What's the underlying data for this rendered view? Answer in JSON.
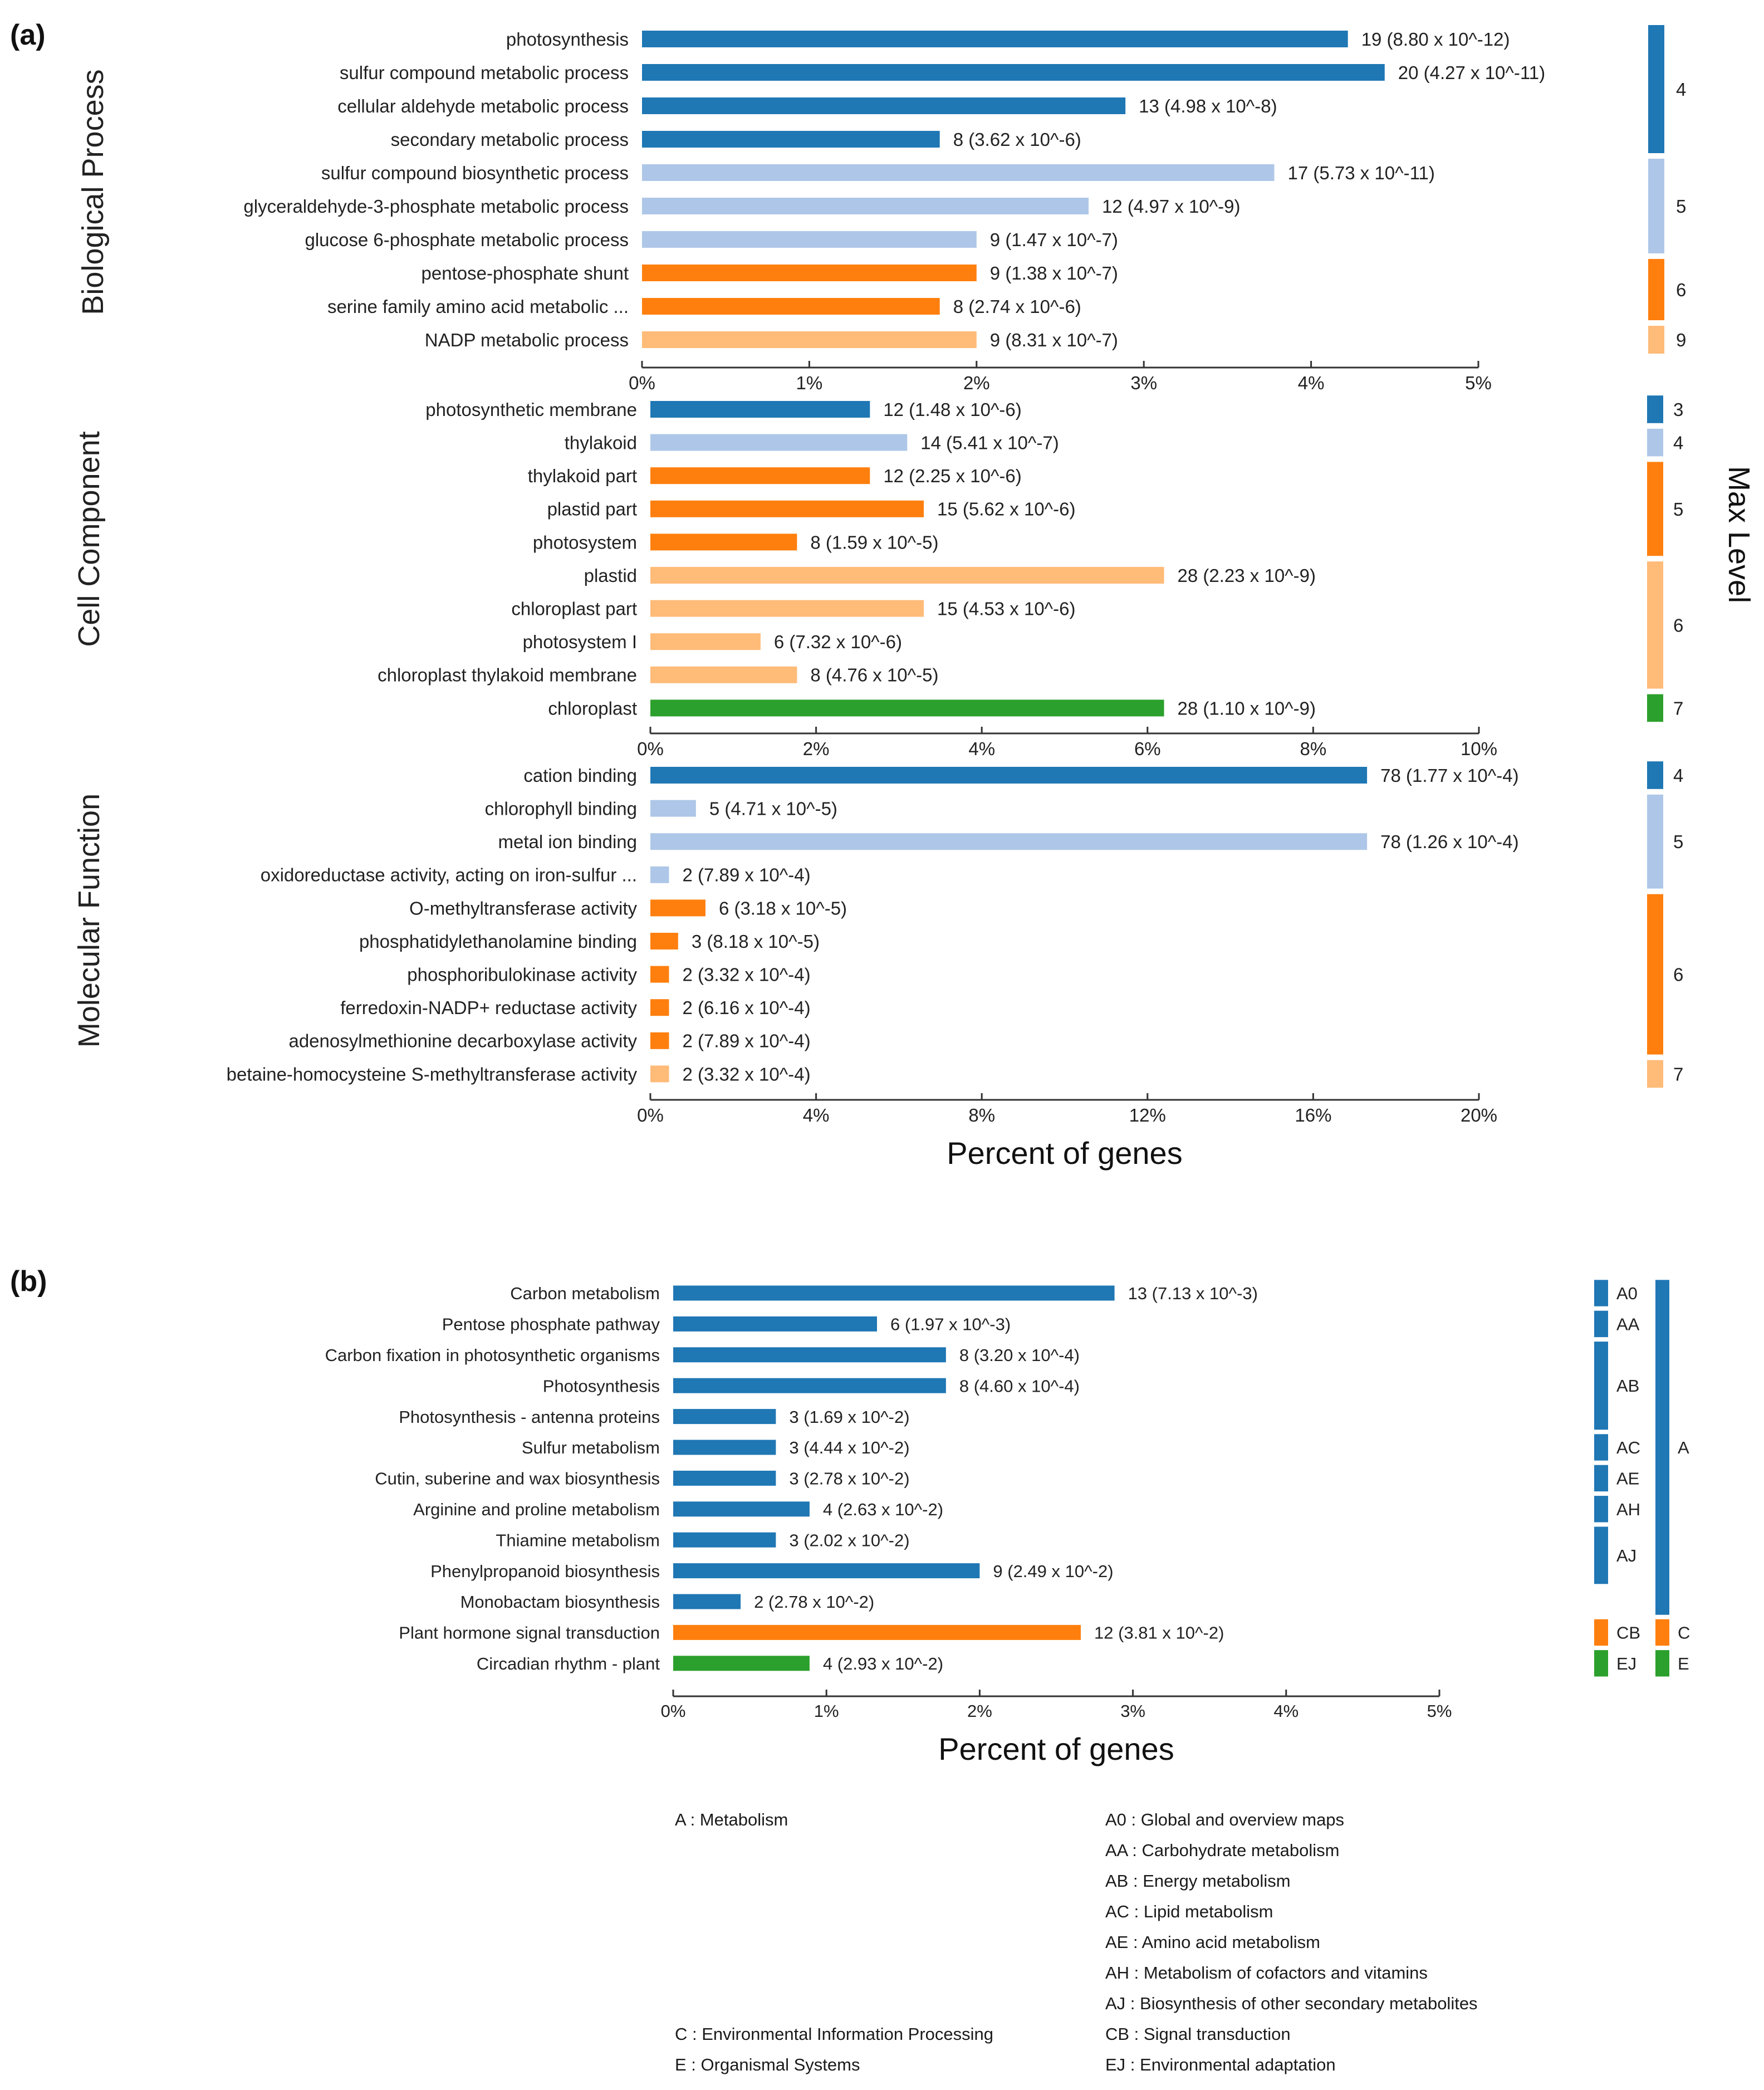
{
  "colors": {
    "dark_blue": "#1f77b4",
    "light_blue": "#aec7e8",
    "orange": "#ff7f0e",
    "light_orange": "#ffbb78",
    "green": "#2ca02c",
    "axis": "#333333"
  },
  "figure": {
    "panel_a_label": "(a)",
    "panel_b_label": "(b)",
    "max_level_label": "Max Level"
  },
  "chart_data": [
    {
      "id": "bp",
      "type": "bar",
      "orientation": "horizontal",
      "group_label": "Biological Process",
      "xlim": [
        0,
        5
      ],
      "xticks": [
        "0%",
        "1%",
        "2%",
        "3%",
        "4%",
        "5%"
      ],
      "categories": [
        "photosynthesis",
        "sulfur compound metabolic process",
        "cellular aldehyde metabolic process",
        "secondary metabolic process",
        "sulfur compound biosynthetic process",
        "glyceraldehyde-3-phosphate metabolic process",
        "glucose 6-phosphate metabolic process",
        "pentose-phosphate shunt",
        "serine family amino acid metabolic ...",
        "NADP metabolic process"
      ],
      "values": [
        4.22,
        4.44,
        2.89,
        1.78,
        3.78,
        2.67,
        2.0,
        2.0,
        1.78,
        2.0
      ],
      "labels": [
        "19 (8.80 x 10^-12)",
        "20 (4.27 x 10^-11)",
        "13 (4.98 x 10^-8)",
        "8 (3.62 x 10^-6)",
        "17 (5.73 x 10^-11)",
        "12 (4.97 x 10^-9)",
        "9 (1.47 x 10^-7)",
        "9 (1.38 x 10^-7)",
        "8 (2.74 x 10^-6)",
        "9 (8.31 x 10^-7)"
      ],
      "bar_colors": [
        "dark_blue",
        "dark_blue",
        "dark_blue",
        "dark_blue",
        "light_blue",
        "light_blue",
        "light_blue",
        "orange",
        "orange",
        "light_orange"
      ],
      "levels": [
        {
          "label": "4",
          "start": 0,
          "end": 3,
          "color": "dark_blue"
        },
        {
          "label": "5",
          "start": 4,
          "end": 6,
          "color": "light_blue"
        },
        {
          "label": "6",
          "start": 7,
          "end": 8,
          "color": "orange"
        },
        {
          "label": "9",
          "start": 9,
          "end": 9,
          "color": "light_orange"
        }
      ]
    },
    {
      "id": "cc",
      "type": "bar",
      "orientation": "horizontal",
      "group_label": "Cell Component",
      "xlim": [
        0,
        10
      ],
      "xticks": [
        "0%",
        "2%",
        "4%",
        "6%",
        "8%",
        "10%"
      ],
      "categories": [
        "photosynthetic membrane",
        "thylakoid",
        "thylakoid part",
        "plastid part",
        "photosystem",
        "plastid",
        "chloroplast part",
        "photosystem I",
        "chloroplast thylakoid membrane",
        "chloroplast"
      ],
      "values": [
        2.65,
        3.1,
        2.65,
        3.3,
        1.77,
        6.2,
        3.3,
        1.33,
        1.77,
        6.2
      ],
      "labels": [
        "12 (1.48 x 10^-6)",
        "14 (5.41 x 10^-7)",
        "12 (2.25 x 10^-6)",
        "15 (5.62 x 10^-6)",
        "8 (1.59 x 10^-5)",
        "28 (2.23 x 10^-9)",
        "15 (4.53 x 10^-6)",
        "6 (7.32 x 10^-6)",
        "8 (4.76 x 10^-5)",
        "28 (1.10 x 10^-9)"
      ],
      "bar_colors": [
        "dark_blue",
        "light_blue",
        "orange",
        "orange",
        "orange",
        "light_orange",
        "light_orange",
        "light_orange",
        "light_orange",
        "green"
      ],
      "levels": [
        {
          "label": "3",
          "start": 0,
          "end": 0,
          "color": "dark_blue"
        },
        {
          "label": "4",
          "start": 1,
          "end": 1,
          "color": "light_blue"
        },
        {
          "label": "5",
          "start": 2,
          "end": 4,
          "color": "orange"
        },
        {
          "label": "6",
          "start": 5,
          "end": 8,
          "color": "light_orange"
        },
        {
          "label": "7",
          "start": 9,
          "end": 9,
          "color": "green"
        }
      ]
    },
    {
      "id": "mf",
      "type": "bar",
      "orientation": "horizontal",
      "group_label": "Molecular Function",
      "xlim": [
        0,
        20
      ],
      "xticks": [
        "0%",
        "4%",
        "8%",
        "12%",
        "16%",
        "20%"
      ],
      "xlabel": "Percent of genes",
      "categories": [
        "cation binding",
        "chlorophyll binding",
        "metal ion binding",
        "oxidoreductase activity, acting on iron-sulfur ...",
        "O-methyltransferase activity",
        "phosphatidylethanolamine binding",
        "phosphoribulokinase activity",
        "ferredoxin-NADP+ reductase activity",
        "adenosylmethionine decarboxylase activity",
        "betaine-homocysteine S-methyltransferase activity"
      ],
      "values": [
        17.3,
        1.1,
        17.3,
        0.45,
        1.33,
        0.67,
        0.45,
        0.45,
        0.45,
        0.45
      ],
      "labels": [
        "78 (1.77 x 10^-4)",
        "5 (4.71 x 10^-5)",
        "78 (1.26 x 10^-4)",
        "2 (7.89 x 10^-4)",
        "6 (3.18 x 10^-5)",
        "3 (8.18 x 10^-5)",
        "2 (3.32 x 10^-4)",
        "2 (6.16 x 10^-4)",
        "2 (7.89 x 10^-4)",
        "2 (3.32 x 10^-4)"
      ],
      "bar_colors": [
        "dark_blue",
        "light_blue",
        "light_blue",
        "light_blue",
        "orange",
        "orange",
        "orange",
        "orange",
        "orange",
        "light_orange"
      ],
      "levels": [
        {
          "label": "4",
          "start": 0,
          "end": 0,
          "color": "dark_blue"
        },
        {
          "label": "5",
          "start": 1,
          "end": 3,
          "color": "light_blue"
        },
        {
          "label": "6",
          "start": 4,
          "end": 8,
          "color": "orange"
        },
        {
          "label": "7",
          "start": 9,
          "end": 9,
          "color": "light_orange"
        }
      ]
    },
    {
      "id": "kegg",
      "type": "bar",
      "orientation": "horizontal",
      "xlim": [
        0,
        5
      ],
      "xticks": [
        "0%",
        "1%",
        "2%",
        "3%",
        "4%",
        "5%"
      ],
      "xlabel": "Percent of genes",
      "categories": [
        "Carbon metabolism",
        "Pentose phosphate pathway",
        "Carbon fixation in photosynthetic organisms",
        "Photosynthesis",
        "Photosynthesis - antenna proteins",
        "Sulfur metabolism",
        "Cutin, suberine and wax biosynthesis",
        "Arginine and proline metabolism",
        "Thiamine metabolism",
        "Phenylpropanoid biosynthesis",
        "Monobactam biosynthesis",
        "Plant hormone signal transduction",
        "Circadian rhythm - plant"
      ],
      "values": [
        2.88,
        1.33,
        1.78,
        1.78,
        0.67,
        0.67,
        0.67,
        0.89,
        0.67,
        2.0,
        0.44,
        2.66,
        0.89
      ],
      "labels": [
        "13 (7.13 x 10^-3)",
        "6 (1.97 x 10^-3)",
        "8 (3.20 x 10^-4)",
        "8 (4.60 x 10^-4)",
        "3 (1.69 x 10^-2)",
        "3 (4.44 x 10^-2)",
        "3 (2.78 x 10^-2)",
        "4 (2.63 x 10^-2)",
        "3 (2.02 x 10^-2)",
        "9 (2.49 x 10^-2)",
        "2 (2.78 x 10^-2)",
        "12 (3.81 x 10^-2)",
        "4 (2.93 x 10^-2)"
      ],
      "bar_colors": [
        "dark_blue",
        "dark_blue",
        "dark_blue",
        "dark_blue",
        "dark_blue",
        "dark_blue",
        "dark_blue",
        "dark_blue",
        "dark_blue",
        "dark_blue",
        "dark_blue",
        "orange",
        "green"
      ],
      "sub_groups": [
        {
          "label": "A0",
          "start": 0,
          "end": 0,
          "color": "dark_blue"
        },
        {
          "label": "AA",
          "start": 1,
          "end": 1,
          "color": "dark_blue"
        },
        {
          "label": "AB",
          "start": 2,
          "end": 4,
          "color": "dark_blue"
        },
        {
          "label": "AC",
          "start": 5,
          "end": 5,
          "color": "dark_blue"
        },
        {
          "label": "AE",
          "start": 6,
          "end": 6,
          "color": "dark_blue"
        },
        {
          "label": "AH",
          "start": 7,
          "end": 7,
          "color": "dark_blue"
        },
        {
          "label": "AJ",
          "start": 8,
          "end": 9,
          "color": "dark_blue"
        },
        {
          "label": "CB",
          "start": 11,
          "end": 11,
          "color": "orange"
        },
        {
          "label": "EJ",
          "start": 12,
          "end": 12,
          "color": "green"
        }
      ],
      "top_groups": [
        {
          "label": "A",
          "start": 0,
          "end": 10,
          "color": "dark_blue"
        },
        {
          "label": "C",
          "start": 11,
          "end": 11,
          "color": "orange"
        },
        {
          "label": "E",
          "start": 12,
          "end": 12,
          "color": "green"
        }
      ]
    }
  ],
  "legend": {
    "left": [
      "A : Metabolism",
      "C : Environmental Information Processing",
      "E : Organismal Systems"
    ],
    "right": [
      "A0 : Global and overview maps",
      "AA : Carbohydrate metabolism",
      "AB : Energy metabolism",
      "AC : Lipid metabolism",
      "AE : Amino acid metabolism",
      "AH : Metabolism of cofactors and vitamins",
      "AJ : Biosynthesis of other secondary metabolites",
      "CB : Signal transduction",
      "EJ : Environmental adaptation"
    ]
  }
}
